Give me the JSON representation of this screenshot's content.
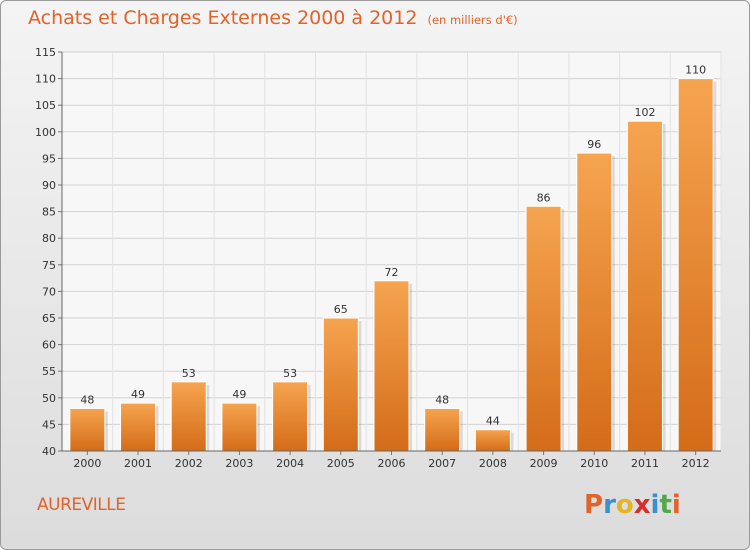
{
  "chart_data": {
    "type": "bar",
    "title": "Achats et Charges Externes 2000 à 2012",
    "unit_note": "(en milliers d'€)",
    "xlabel": "",
    "ylabel": "",
    "categories": [
      "2000",
      "2001",
      "2002",
      "2003",
      "2004",
      "2005",
      "2006",
      "2007",
      "2008",
      "2009",
      "2010",
      "2011",
      "2012"
    ],
    "values": [
      48,
      49,
      53,
      49,
      53,
      65,
      72,
      48,
      44,
      86,
      96,
      102,
      110
    ],
    "ylim": [
      40,
      115
    ],
    "yticks": [
      40,
      45,
      50,
      55,
      60,
      65,
      70,
      75,
      80,
      85,
      90,
      95,
      100,
      105,
      110,
      115
    ],
    "grid": true,
    "bar_color": "#f08c33"
  },
  "footer": {
    "location": "AUREVILLE",
    "brand": "Proxiti",
    "brand_colors": [
      "#e0632a",
      "#3a8fd1",
      "#e6b422",
      "#d62d2d",
      "#3a8fd1",
      "#52a84a",
      "#e0632a"
    ]
  }
}
